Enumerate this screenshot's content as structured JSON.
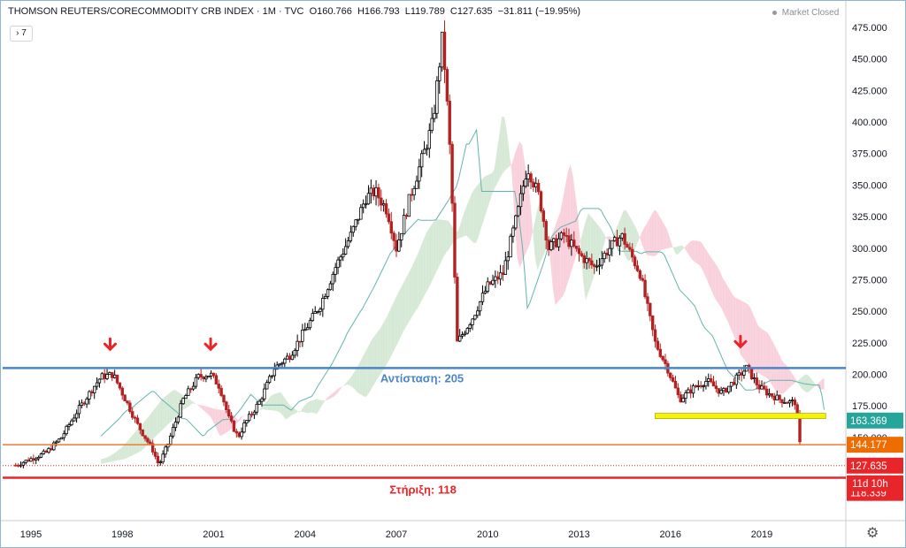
{
  "header": {
    "symbol": "THOMSON REUTERS/CORECOMMODITY CRB INDEX · 1M · TVC",
    "open": "O160.766",
    "high": "H166.793",
    "low": "L119.789",
    "close": "C127.635",
    "change": "−31.811 (−19.95%)",
    "collapse_label": "7",
    "market_status": "Market Closed"
  },
  "colors": {
    "bull": "#000000",
    "bear": "#b22222",
    "resistance": "#4a86c7",
    "support": "#e8262a",
    "orange_level": "#ef7a30",
    "cloud_green": "#cfe5cf",
    "cloud_pink": "#f8c9d6",
    "kijun": "#63b3ad",
    "yellow_zone": "#f5f20d"
  },
  "chart_data": {
    "type": "line",
    "title": "THOMSON REUTERS/CORECOMMODITY CRB INDEX",
    "interval": "1M",
    "ylim": [
      75,
      480
    ],
    "y_ticks": [
      "475.000",
      "450.000",
      "425.000",
      "400.000",
      "375.000",
      "350.000",
      "325.000",
      "300.000",
      "275.000",
      "250.000",
      "225.000",
      "200.000",
      "175.000",
      "150.000"
    ],
    "x_ticks": [
      "1995",
      "1998",
      "2001",
      "2004",
      "2007",
      "2010",
      "2013",
      "2016",
      "2019"
    ],
    "series": [
      {
        "x": [
          1994.5,
          1995,
          1995.5,
          1996,
          1996.5,
          1997,
          1997.3,
          1997.7,
          1998,
          1998.5,
          1999,
          1999.2,
          1999.5,
          2000,
          2000.5,
          2000.9,
          2001.2,
          2001.5,
          2001.8,
          2002,
          2002.5,
          2003,
          2003.5,
          2004,
          2004.5,
          2005,
          2005.5,
          2006,
          2006.3,
          2006.7,
          2007,
          2007.5,
          2007.9,
          2008.2,
          2008.5,
          2008.6,
          2008.8,
          2008.9,
          2009,
          2009.5,
          2010,
          2010.5,
          2011,
          2011.3,
          2011.7,
          2012,
          2012.5,
          2013,
          2013.5,
          2014,
          2014.4,
          2014.8,
          2015,
          2015.5,
          2015.9,
          2016.3,
          2016.8,
          2017.2,
          2017.7,
          2018.1,
          2018.5,
          2018.9,
          2019.2,
          2019.6,
          2019.9,
          2020.1,
          2020.2,
          2020.3
        ],
        "y": [
          128,
          133,
          138,
          150,
          170,
          188,
          198,
          200,
          185,
          160,
          140,
          128,
          145,
          180,
          198,
          200,
          190,
          165,
          150,
          160,
          178,
          205,
          215,
          235,
          255,
          285,
          310,
          340,
          345,
          330,
          300,
          345,
          375,
          400,
          465,
          440,
          360,
          285,
          225,
          245,
          270,
          280,
          330,
          365,
          340,
          300,
          310,
          295,
          285,
          300,
          310,
          290,
          280,
          225,
          205,
          180,
          190,
          195,
          185,
          195,
          205,
          190,
          185,
          180,
          178,
          178,
          160,
          130
        ]
      }
    ],
    "levels": [
      {
        "label": "Αντίσταση: 205",
        "value": 205
      },
      {
        "label": "Στήριξη: 118",
        "value": 118
      },
      {
        "value": 144.177
      },
      {
        "value": 127.635
      },
      {
        "value": 167
      }
    ],
    "price_tags": [
      {
        "label": "163.369",
        "value": 163.369,
        "color": "#26a69a"
      },
      {
        "label": "144.177",
        "value": 144.177,
        "color": "#ef6c00"
      },
      {
        "label": "127.635",
        "value": 127.635,
        "color": "#e8262a"
      },
      {
        "label": "118.339",
        "value": 106,
        "color": "#e8262a"
      }
    ],
    "countdown": "11d 10h",
    "arrows_at": [
      [
        1997.6,
        210
      ],
      [
        2000.9,
        210
      ],
      [
        2018.3,
        212
      ]
    ]
  }
}
